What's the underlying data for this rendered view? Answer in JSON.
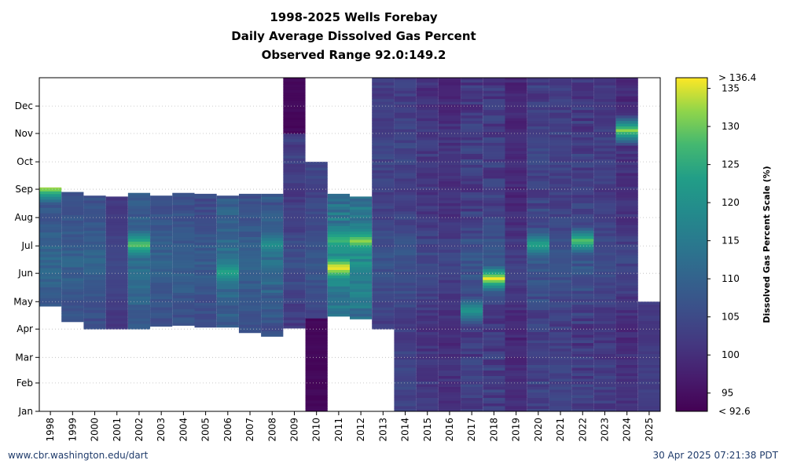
{
  "title_lines": [
    "1998-2025 Wells Forebay",
    "Daily Average Dissolved Gas Percent",
    "Observed Range 92.0:149.2"
  ],
  "footer": {
    "left": "www.cbr.washington.edu/dart",
    "right": "30 Apr 2025 07:21:38 PDT"
  },
  "colors": {
    "palette": "viridis",
    "missing": "#ffffff",
    "frame": "#000000",
    "grid": "#bbbbbb"
  },
  "chart_data": {
    "type": "heatmap",
    "title": "1998-2025 Wells Forebay Daily Average Dissolved Gas Percent Observed Range 92.0:149.2",
    "x_categories": [
      "1998",
      "1999",
      "2000",
      "2001",
      "2002",
      "2003",
      "2004",
      "2005",
      "2006",
      "2007",
      "2008",
      "2009",
      "2010",
      "2011",
      "2012",
      "2013",
      "2014",
      "2015",
      "2016",
      "2017",
      "2018",
      "2019",
      "2020",
      "2021",
      "2022",
      "2023",
      "2024",
      "2025"
    ],
    "y_ticks": [
      "Jan",
      "Feb",
      "Mar",
      "Apr",
      "May",
      "Jun",
      "Jul",
      "Aug",
      "Sep",
      "Oct",
      "Nov",
      "Dec"
    ],
    "y_axis": "day of year",
    "colorbar": {
      "label": "Dissolved Gas Percent Scale (%)",
      "min": 92.6,
      "max": 136.4,
      "min_label": "< 92.6",
      "max_label": "> 136.4",
      "ticks": [
        95,
        100,
        105,
        110,
        115,
        120,
        125,
        130,
        135
      ]
    },
    "grid": true,
    "years": [
      {
        "year": "1998",
        "start": "Apr 26",
        "end": "Sep 2",
        "base": 107,
        "amp": 2,
        "hot": [
          {
            "pos": "Sep 1",
            "val": 134
          }
        ]
      },
      {
        "year": "1999",
        "start": "Apr 9",
        "end": "Aug 28",
        "base": 106,
        "amp": 2,
        "hot": []
      },
      {
        "year": "2000",
        "start": "Apr 1",
        "end": "Aug 24",
        "base": 106,
        "amp": 2,
        "hot": []
      },
      {
        "year": "2001",
        "start": "Apr 1",
        "end": "Aug 23",
        "base": 102,
        "amp": 1,
        "hot": []
      },
      {
        "year": "2002",
        "start": "Apr 1",
        "end": "Aug 27",
        "base": 108,
        "amp": 3,
        "hot": [
          {
            "pos": "Jul 1",
            "val": 130
          }
        ]
      },
      {
        "year": "2003",
        "start": "Apr 4",
        "end": "Aug 24",
        "base": 106,
        "amp": 2,
        "hot": []
      },
      {
        "year": "2004",
        "start": "Apr 5",
        "end": "Aug 27",
        "base": 106,
        "amp": 2,
        "hot": []
      },
      {
        "year": "2005",
        "start": "Apr 3",
        "end": "Aug 26",
        "base": 105,
        "amp": 2,
        "hot": []
      },
      {
        "year": "2006",
        "start": "Apr 3",
        "end": "Aug 24",
        "base": 108,
        "amp": 3,
        "hot": [
          {
            "pos": "Jun 1",
            "val": 125
          }
        ]
      },
      {
        "year": "2007",
        "start": "Mar 28",
        "end": "Aug 26",
        "base": 106,
        "amp": 2,
        "hot": []
      },
      {
        "year": "2008",
        "start": "Mar 24",
        "end": "Aug 26",
        "base": 107,
        "amp": 3,
        "hot": [
          {
            "pos": "Jul 1",
            "val": 120
          }
        ]
      },
      {
        "year": "2009",
        "start": "Apr 2",
        "end": "Dec 31",
        "base": 102,
        "amp": 2,
        "hot": [],
        "dark_from": "Nov 1"
      },
      {
        "year": "2010",
        "start": "Jan 1",
        "end": "Sep 30",
        "base": 104,
        "amp": 2,
        "hot": [],
        "dark_until": "Apr 10"
      },
      {
        "year": "2011",
        "start": "Apr 15",
        "end": "Aug 26",
        "base": 112,
        "amp": 4,
        "hot": [
          {
            "pos": "Jun 6",
            "val": 137
          },
          {
            "pos": "Jul 6",
            "val": 128
          }
        ]
      },
      {
        "year": "2012",
        "start": "Apr 12",
        "end": "Aug 23",
        "base": 112,
        "amp": 4,
        "hot": [
          {
            "pos": "Jul 5",
            "val": 132
          }
        ]
      },
      {
        "year": "2013",
        "start": "Apr 1",
        "end": "Dec 31",
        "base": 103,
        "amp": 2,
        "hot": []
      },
      {
        "year": "2014",
        "start": "Jan 1",
        "end": "Dec 31",
        "base": 103,
        "amp": 2,
        "hot": []
      },
      {
        "year": "2015",
        "start": "Jan 1",
        "end": "Dec 31",
        "base": 101,
        "amp": 2,
        "hot": []
      },
      {
        "year": "2016",
        "start": "Jan 1",
        "end": "Dec 31",
        "base": 100,
        "amp": 2,
        "hot": []
      },
      {
        "year": "2017",
        "start": "Jan 1",
        "end": "Dec 31",
        "base": 102,
        "amp": 3,
        "hot": [
          {
            "pos": "Apr 20",
            "val": 122
          }
        ]
      },
      {
        "year": "2018",
        "start": "Jan 1",
        "end": "Dec 31",
        "base": 102,
        "amp": 3,
        "hot": [
          {
            "pos": "May 25",
            "val": 136
          }
        ]
      },
      {
        "year": "2019",
        "start": "Jan 1",
        "end": "Dec 31",
        "base": 99,
        "amp": 2,
        "hot": []
      },
      {
        "year": "2020",
        "start": "Jan 1",
        "end": "Dec 31",
        "base": 103,
        "amp": 3,
        "hot": [
          {
            "pos": "Jul 1",
            "val": 125
          }
        ]
      },
      {
        "year": "2021",
        "start": "Jan 1",
        "end": "Dec 31",
        "base": 103,
        "amp": 2,
        "hot": []
      },
      {
        "year": "2022",
        "start": "Jan 1",
        "end": "Dec 31",
        "base": 102,
        "amp": 3,
        "hot": [
          {
            "pos": "Jul 5",
            "val": 130
          }
        ]
      },
      {
        "year": "2023",
        "start": "Jan 1",
        "end": "Dec 31",
        "base": 102,
        "amp": 2,
        "hot": []
      },
      {
        "year": "2024",
        "start": "Jan 1",
        "end": "Dec 31",
        "base": 100,
        "amp": 2,
        "hot": [
          {
            "pos": "Nov 3",
            "val": 132
          }
        ]
      },
      {
        "year": "2025",
        "start": "Jan 1",
        "end": "Apr 30",
        "base": 102,
        "amp": 1,
        "hot": []
      }
    ]
  }
}
